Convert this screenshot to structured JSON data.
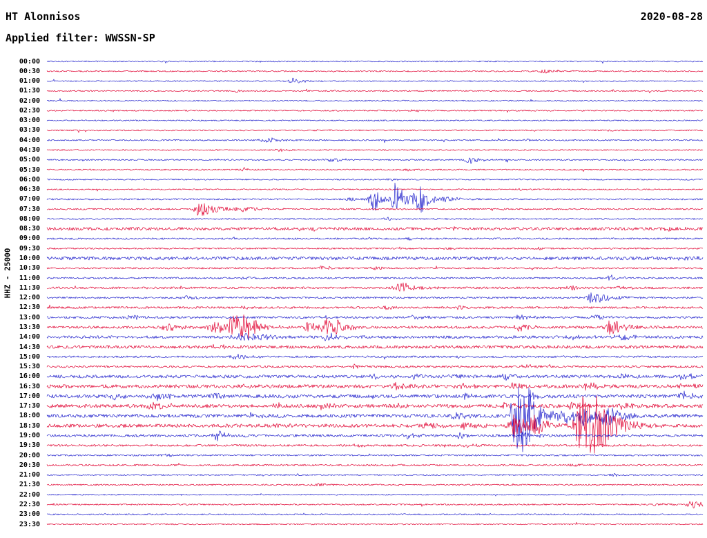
{
  "header": {
    "station_title": "HT Alonnisos",
    "date": "2020-08-28",
    "filter_label": "Applied filter: WWSSN-SP"
  },
  "y_axis_label": "HHZ - 25000",
  "chart_data": {
    "type": "line",
    "kind": "helicorder-seismogram",
    "title": "HT Alonnisos",
    "station": "HT Alonnisos",
    "channel": "HHZ",
    "scale": 25000,
    "date": "2020-08-28",
    "filter": "WWSSN-SP",
    "minutes_per_row": 30,
    "xlabel": "",
    "ylabel": "HHZ - 25000",
    "grid": false,
    "legend": false,
    "colors": {
      "blue": "#2020cc",
      "red": "#e00030",
      "text": "#000000"
    },
    "rows": [
      {
        "time": "00:00",
        "color": "blue",
        "noise": 0.9,
        "events": []
      },
      {
        "time": "00:30",
        "color": "red",
        "noise": 0.9,
        "events": [
          [
            0.76,
            4,
            5
          ]
        ]
      },
      {
        "time": "01:00",
        "color": "blue",
        "noise": 0.9,
        "events": [
          [
            0.375,
            5,
            5
          ]
        ]
      },
      {
        "time": "01:30",
        "color": "red",
        "noise": 0.9,
        "events": [
          [
            0.29,
            2,
            4
          ]
        ]
      },
      {
        "time": "02:00",
        "color": "blue",
        "noise": 0.9,
        "events": []
      },
      {
        "time": "02:30",
        "color": "red",
        "noise": 0.9,
        "events": [
          [
            0.56,
            1.8,
            4
          ]
        ]
      },
      {
        "time": "03:00",
        "color": "blue",
        "noise": 0.9,
        "events": []
      },
      {
        "time": "03:30",
        "color": "red",
        "noise": 0.9,
        "events": [
          [
            0.41,
            1.8,
            4
          ],
          [
            0.86,
            1.6,
            4
          ]
        ]
      },
      {
        "time": "04:00",
        "color": "blue",
        "noise": 1.0,
        "events": [
          [
            0.335,
            4,
            7
          ],
          [
            0.73,
            2,
            5
          ]
        ]
      },
      {
        "time": "04:30",
        "color": "red",
        "noise": 0.9,
        "events": [
          [
            0.355,
            2.2,
            4
          ]
        ]
      },
      {
        "time": "05:00",
        "color": "blue",
        "noise": 1.0,
        "events": [
          [
            0.645,
            6,
            5
          ],
          [
            0.435,
            3,
            6
          ],
          [
            0.26,
            2,
            5
          ]
        ]
      },
      {
        "time": "05:30",
        "color": "red",
        "noise": 1.0,
        "events": [
          [
            0.3,
            2.5,
            5
          ],
          [
            0.55,
            2,
            4
          ]
        ]
      },
      {
        "time": "06:00",
        "color": "blue",
        "noise": 0.9,
        "events": [
          [
            0.52,
            1.8,
            4
          ]
        ]
      },
      {
        "time": "06:30",
        "color": "red",
        "noise": 0.9,
        "events": [
          [
            0.72,
            1.8,
            4
          ]
        ]
      },
      {
        "time": "07:00",
        "color": "blue",
        "noise": 1.1,
        "events": [
          [
            0.497,
            22,
            4
          ],
          [
            0.533,
            26,
            5
          ],
          [
            0.567,
            24,
            4
          ],
          [
            0.61,
            4,
            8
          ],
          [
            0.46,
            2.5,
            5
          ]
        ]
      },
      {
        "time": "07:30",
        "color": "red",
        "noise": 1.1,
        "events": [
          [
            0.235,
            14,
            7
          ],
          [
            0.3,
            3,
            10
          ]
        ]
      },
      {
        "time": "08:00",
        "color": "blue",
        "noise": 1.0,
        "events": [
          [
            0.52,
            2,
            5
          ]
        ]
      },
      {
        "time": "08:30",
        "color": "red",
        "noise": 2.2,
        "events": [
          [
            0.945,
            3,
            5
          ],
          [
            0.62,
            2.5,
            5
          ]
        ]
      },
      {
        "time": "09:00",
        "color": "blue",
        "noise": 1.2,
        "events": [
          [
            0.55,
            2,
            4
          ]
        ]
      },
      {
        "time": "09:30",
        "color": "red",
        "noise": 1.1,
        "events": [
          [
            0.61,
            2,
            4
          ],
          [
            0.75,
            2,
            4
          ]
        ]
      },
      {
        "time": "10:00",
        "color": "blue",
        "noise": 2.4,
        "events": [
          [
            0.97,
            3,
            5
          ]
        ]
      },
      {
        "time": "10:30",
        "color": "red",
        "noise": 1.2,
        "events": [
          [
            0.42,
            4,
            6
          ],
          [
            0.5,
            2,
            4
          ]
        ]
      },
      {
        "time": "11:00",
        "color": "blue",
        "noise": 1.2,
        "events": [
          [
            0.86,
            5,
            4
          ],
          [
            0.3,
            2,
            4
          ]
        ]
      },
      {
        "time": "11:30",
        "color": "red",
        "noise": 1.5,
        "events": [
          [
            0.54,
            9,
            7
          ],
          [
            0.8,
            3,
            5
          ],
          [
            0.875,
            3,
            5
          ]
        ]
      },
      {
        "time": "12:00",
        "color": "blue",
        "noise": 1.3,
        "events": [
          [
            0.835,
            9,
            8
          ],
          [
            0.21,
            3,
            5
          ]
        ]
      },
      {
        "time": "12:30",
        "color": "red",
        "noise": 1.5,
        "events": [
          [
            0.3,
            3,
            5
          ],
          [
            0.52,
            2.5,
            5
          ],
          [
            0.63,
            2.5,
            5
          ]
        ]
      },
      {
        "time": "13:00",
        "color": "blue",
        "noise": 1.6,
        "events": [
          [
            0.13,
            4,
            6
          ],
          [
            0.56,
            3,
            5
          ],
          [
            0.72,
            4,
            6
          ],
          [
            0.84,
            4,
            6
          ]
        ]
      },
      {
        "time": "13:30",
        "color": "red",
        "noise": 1.8,
        "events": [
          [
            0.185,
            6,
            6
          ],
          [
            0.255,
            14,
            5
          ],
          [
            0.285,
            18,
            5
          ],
          [
            0.305,
            13,
            7
          ],
          [
            0.4,
            10,
            4
          ],
          [
            0.425,
            12,
            4
          ],
          [
            0.445,
            10,
            5
          ],
          [
            0.72,
            5,
            6
          ],
          [
            0.86,
            12,
            7
          ]
        ]
      },
      {
        "time": "14:00",
        "color": "blue",
        "noise": 2.0,
        "events": [
          [
            0.3,
            7,
            10
          ],
          [
            0.43,
            5,
            7
          ],
          [
            0.8,
            4,
            6
          ],
          [
            0.875,
            4,
            6
          ]
        ]
      },
      {
        "time": "14:30",
        "color": "red",
        "noise": 2.2,
        "events": [
          [
            0.27,
            3,
            5
          ]
        ]
      },
      {
        "time": "15:00",
        "color": "blue",
        "noise": 1.4,
        "events": [
          [
            0.285,
            4,
            7
          ]
        ]
      },
      {
        "time": "15:30",
        "color": "red",
        "noise": 1.5,
        "events": [
          [
            0.47,
            2.5,
            5
          ],
          [
            0.73,
            3,
            5
          ]
        ]
      },
      {
        "time": "16:00",
        "color": "blue",
        "noise": 2.2,
        "events": [
          [
            0.5,
            4,
            5
          ],
          [
            0.56,
            4,
            5
          ],
          [
            0.62,
            3,
            5
          ],
          [
            0.7,
            4,
            5
          ],
          [
            0.88,
            3,
            5
          ],
          [
            0.97,
            5,
            5
          ]
        ]
      },
      {
        "time": "16:30",
        "color": "red",
        "noise": 2.5,
        "events": [
          [
            0.3,
            4,
            5
          ],
          [
            0.53,
            5,
            5
          ],
          [
            0.63,
            4,
            5
          ],
          [
            0.71,
            4,
            5
          ],
          [
            0.825,
            5,
            5
          ],
          [
            0.97,
            4,
            5
          ]
        ]
      },
      {
        "time": "17:00",
        "color": "blue",
        "noise": 2.5,
        "events": [
          [
            0.105,
            5,
            5
          ],
          [
            0.17,
            6,
            7
          ],
          [
            0.255,
            5,
            5
          ],
          [
            0.64,
            5,
            5
          ],
          [
            0.74,
            5,
            5
          ],
          [
            0.97,
            6,
            5
          ]
        ]
      },
      {
        "time": "17:30",
        "color": "red",
        "noise": 2.5,
        "events": [
          [
            0.165,
            7,
            6
          ],
          [
            0.35,
            5,
            5
          ],
          [
            0.42,
            4,
            5
          ],
          [
            0.53,
            4,
            5
          ],
          [
            0.7,
            6,
            5
          ],
          [
            0.8,
            5,
            5
          ],
          [
            0.88,
            5,
            5
          ]
        ]
      },
      {
        "time": "18:00",
        "color": "blue",
        "noise": 2.5,
        "events": [
          [
            0.31,
            4,
            5
          ],
          [
            0.625,
            6,
            5
          ],
          [
            0.715,
            55,
            5
          ],
          [
            0.73,
            38,
            6
          ],
          [
            0.79,
            10,
            6
          ],
          [
            0.82,
            12,
            6
          ],
          [
            0.855,
            14,
            8
          ]
        ]
      },
      {
        "time": "18:30",
        "color": "red",
        "noise": 2.5,
        "events": [
          [
            0.35,
            4,
            5
          ],
          [
            0.58,
            5,
            5
          ],
          [
            0.64,
            5,
            5
          ],
          [
            0.715,
            20,
            6
          ],
          [
            0.745,
            12,
            6
          ],
          [
            0.818,
            45,
            8
          ],
          [
            0.84,
            28,
            8
          ]
        ]
      },
      {
        "time": "19:00",
        "color": "blue",
        "noise": 1.8,
        "events": [
          [
            0.26,
            7,
            5
          ],
          [
            0.55,
            4,
            5
          ],
          [
            0.63,
            4,
            5
          ],
          [
            0.73,
            5,
            5
          ]
        ]
      },
      {
        "time": "19:30",
        "color": "red",
        "noise": 1.5,
        "events": [
          [
            0.47,
            2.5,
            4
          ],
          [
            0.64,
            3,
            4
          ]
        ]
      },
      {
        "time": "20:00",
        "color": "blue",
        "noise": 1.2,
        "events": [
          [
            0.18,
            3,
            4
          ]
        ]
      },
      {
        "time": "20:30",
        "color": "red",
        "noise": 1.2,
        "events": [
          [
            0.52,
            2,
            4
          ],
          [
            0.8,
            3,
            4
          ]
        ]
      },
      {
        "time": "21:00",
        "color": "blue",
        "noise": 1.0,
        "events": [
          [
            0.86,
            3,
            4
          ]
        ]
      },
      {
        "time": "21:30",
        "color": "red",
        "noise": 1.0,
        "events": [
          [
            0.407,
            5,
            4
          ]
        ]
      },
      {
        "time": "22:00",
        "color": "blue",
        "noise": 0.9,
        "events": []
      },
      {
        "time": "22:30",
        "color": "red",
        "noise": 1.0,
        "events": [
          [
            0.985,
            7,
            6
          ],
          [
            0.93,
            3,
            4
          ]
        ]
      },
      {
        "time": "23:00",
        "color": "blue",
        "noise": 1.0,
        "events": []
      },
      {
        "time": "23:30",
        "color": "red",
        "noise": 0.9,
        "events": []
      }
    ]
  }
}
